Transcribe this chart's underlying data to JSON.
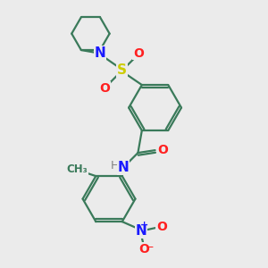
{
  "bg_color": "#ebebeb",
  "bond_color": "#3a7a5a",
  "atom_colors": {
    "N": "#1a1aff",
    "O": "#ff2020",
    "S": "#cccc00",
    "H": "#808080",
    "C": "#3a7a5a"
  }
}
